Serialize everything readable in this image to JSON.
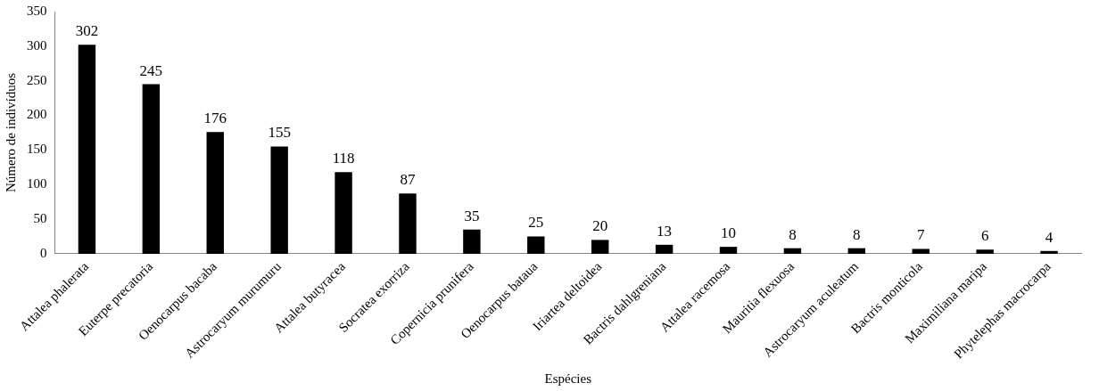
{
  "chart_data": {
    "type": "bar",
    "xlabel": "Espécies",
    "ylabel": "Número de indivíduos",
    "categories": [
      "Attalea phalerata",
      "Euterpe precatoria",
      "Oenocarpus bacaba",
      "Astrocaryum murumuru",
      "Attalea butyracea",
      "Socratea exorriza",
      "Copernicia prunifera",
      "Oenocarpus bataua",
      "Iriartea deltoidea",
      "Bactris dahlgreniana",
      "Attalea racemosa",
      "Mauritia flexuosa",
      "Astrocaryum aculeatum",
      "Bactris monticola",
      "Maximiliana maripa",
      "Phytelephas macrocarpa"
    ],
    "values": [
      302,
      245,
      176,
      155,
      118,
      87,
      35,
      25,
      20,
      13,
      10,
      8,
      8,
      7,
      6,
      4
    ],
    "color": "#000000",
    "ylim": [
      0,
      350
    ],
    "yticks": [
      0,
      50,
      100,
      150,
      200,
      250,
      300,
      350
    ],
    "grid": false,
    "data_labels": true,
    "legend": false
  }
}
